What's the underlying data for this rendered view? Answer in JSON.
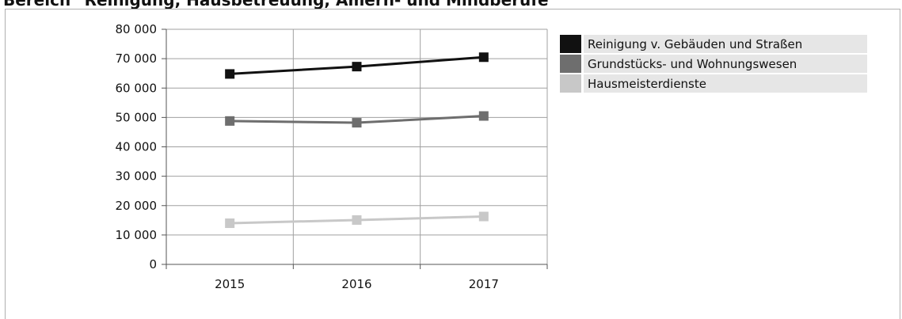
{
  "page_title": "Bereich \"Reinigung, Hausbetreuung, Amern- und Mindberufe\"",
  "chart_data": {
    "type": "line",
    "title": "",
    "xlabel": "",
    "ylabel": "",
    "categories": [
      "2015",
      "2016",
      "2017"
    ],
    "ylim": [
      0,
      80000
    ],
    "yticks": [
      0,
      10000,
      20000,
      30000,
      40000,
      50000,
      60000,
      70000,
      80000
    ],
    "ytick_labels": [
      "0",
      "10 000",
      "20 000",
      "30 000",
      "40 000",
      "50 000",
      "60 000",
      "70 000",
      "80 000"
    ],
    "grid": true,
    "legend_position": "right",
    "series": [
      {
        "name": "Reinigung v. Gebäuden und Straßen",
        "values": [
          64800,
          67300,
          70500
        ],
        "color": "#111111"
      },
      {
        "name": "Grundstücks- und Wohnungswesen",
        "values": [
          48800,
          48200,
          50500
        ],
        "color": "#6e6e6e"
      },
      {
        "name": "Hausmeisterdienste",
        "values": [
          14000,
          15100,
          16300
        ],
        "color": "#c8c8c8"
      }
    ]
  }
}
